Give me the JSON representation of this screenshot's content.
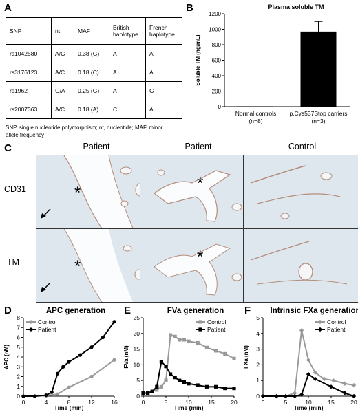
{
  "panels": {
    "a": {
      "letter": "A"
    },
    "b": {
      "letter": "B"
    },
    "c": {
      "letter": "C"
    },
    "d": {
      "letter": "D"
    },
    "e": {
      "letter": "E"
    },
    "f": {
      "letter": "F"
    }
  },
  "table": {
    "headers": [
      "SNP",
      "nt.",
      "MAF",
      "British haplotype",
      "French haplotype"
    ],
    "rows": [
      [
        "rs1042580",
        "A/G",
        "0.38 (G)",
        "A",
        "A"
      ],
      [
        "rs3176123",
        "A/C",
        "0.18 (C)",
        "A",
        "A"
      ],
      [
        "rs1962",
        "G/A",
        "0.25 (G)",
        "A",
        "G"
      ],
      [
        "rs2007363",
        "A/C",
        "0.18 (A)",
        "C",
        "A"
      ]
    ],
    "note": "SNP, single nucleotide polymorphism; nt, nucleotide; MAF, minor allele frequency"
  },
  "micrographs": {
    "columns": [
      "Patient",
      "Patient",
      "Control"
    ],
    "rows": [
      "CD31",
      "TM"
    ],
    "asterisk": "*"
  },
  "colors": {
    "dark": "#000000",
    "light": "#999999",
    "bar": "#000000",
    "tissue": "#dfe7ee"
  },
  "chart_data": [
    {
      "type": "bar",
      "title": "Plasma soluble TM",
      "ylabel": "Soluble TM (ng/mL)",
      "categories": [
        "Normal controls",
        "p.Cys537Stop carriers"
      ],
      "category_sublabels": [
        "(n=8)",
        "(n=3)"
      ],
      "values": [
        5,
        970
      ],
      "error": [
        0,
        130
      ],
      "ylim": [
        0,
        1200
      ],
      "yticks": [
        "0",
        "200",
        "400",
        "600",
        "800",
        "1000",
        "1200"
      ]
    },
    {
      "type": "line",
      "title": "APC generation",
      "xlabel": "Time (min)",
      "ylabel": "APC (nM)",
      "xlim": [
        0,
        16
      ],
      "ylim": [
        0,
        8
      ],
      "xticks": [
        "0",
        "4",
        "8",
        "12",
        "16"
      ],
      "yticks": [
        "0",
        "1",
        "2",
        "3",
        "4",
        "5",
        "6",
        "7",
        "8"
      ],
      "legend": "top-left",
      "series": [
        {
          "name": "Control",
          "color": "#999999",
          "x": [
            0,
            2,
            4,
            6,
            8,
            12,
            16
          ],
          "y": [
            0,
            0,
            0.05,
            0.2,
            0.9,
            2.0,
            3.7
          ]
        },
        {
          "name": "Patient",
          "color": "#000000",
          "x": [
            0,
            2,
            4,
            5,
            6,
            7,
            8,
            10,
            12,
            14,
            16
          ],
          "y": [
            0,
            0,
            0.1,
            0.4,
            2.3,
            3.0,
            3.5,
            4.2,
            5.0,
            6.0,
            7.6
          ]
        }
      ]
    },
    {
      "type": "line",
      "title": "FVa generation",
      "xlabel": "Time (min)",
      "ylabel": "FVa (nM)",
      "xlim": [
        0,
        20
      ],
      "ylim": [
        0,
        25
      ],
      "xticks": [
        "0",
        "5",
        "10",
        "15",
        "20"
      ],
      "yticks": [
        "0",
        "5",
        "10",
        "15",
        "20",
        "25"
      ],
      "legend": "top-right",
      "series": [
        {
          "name": "Control",
          "color": "#999999",
          "x": [
            0,
            1,
            2,
            3,
            4,
            5,
            6,
            7,
            8,
            9,
            10,
            12,
            14,
            16,
            18,
            20
          ],
          "y": [
            1,
            1,
            1.5,
            2,
            3,
            5,
            19.5,
            19,
            18,
            18,
            17.5,
            17,
            15.5,
            14.5,
            13.5,
            12
          ]
        },
        {
          "name": "Patient",
          "color": "#000000",
          "x": [
            0,
            1,
            2,
            3,
            4,
            5,
            6,
            7,
            8,
            9,
            10,
            12,
            14,
            16,
            18,
            20
          ],
          "y": [
            1,
            1,
            1.5,
            3,
            11,
            9.5,
            7,
            6,
            5,
            4.5,
            4,
            3.5,
            3,
            3,
            2.5,
            2.5
          ]
        }
      ]
    },
    {
      "type": "line",
      "title": "Intrinsic FXa generation",
      "xlabel": "Time (min)",
      "ylabel": "FXa (nM)",
      "xlim": [
        0,
        20
      ],
      "ylim": [
        0,
        5
      ],
      "xticks": [
        "0",
        "5",
        "10",
        "15",
        "20"
      ],
      "yticks": [
        "0",
        "1",
        "2",
        "3",
        "4",
        "5"
      ],
      "legend": "top-right",
      "series": [
        {
          "name": "Control",
          "color": "#999999",
          "x": [
            0,
            3,
            5,
            7,
            8.5,
            10,
            11.5,
            13.5,
            15.5,
            18,
            20
          ],
          "y": [
            0,
            0,
            0,
            0.2,
            4.2,
            2.3,
            1.5,
            1.1,
            1.0,
            0.8,
            0.7
          ]
        },
        {
          "name": "Patient",
          "color": "#000000",
          "x": [
            0,
            3,
            5,
            7,
            8.5,
            10,
            11.5,
            15,
            18,
            20
          ],
          "y": [
            0,
            0,
            0,
            0,
            0.1,
            1.4,
            1.1,
            0.6,
            0.2,
            0
          ]
        }
      ]
    }
  ]
}
